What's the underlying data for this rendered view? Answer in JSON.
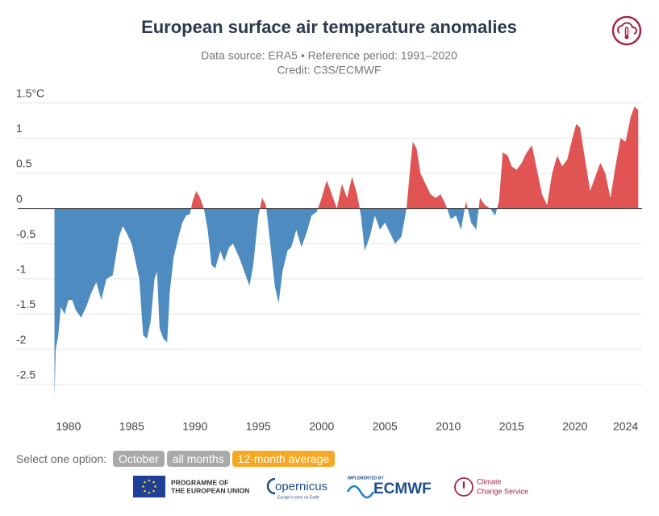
{
  "chart_data": {
    "type": "area",
    "title": "European surface air temperature anomalies",
    "subtitle": "Data source: ERA5 • Reference period: 1991–2020",
    "credit": "Credit: C3S/ECMWF",
    "x": [
      1978.9,
      1979.0,
      1979.2,
      1979.4,
      1979.7,
      1980.0,
      1980.3,
      1980.6,
      1981.0,
      1981.4,
      1981.8,
      1982.2,
      1982.6,
      1983.0,
      1983.5,
      1984.0,
      1984.3,
      1984.6,
      1985.0,
      1985.3,
      1985.6,
      1985.9,
      1986.2,
      1986.5,
      1986.8,
      1987.0,
      1987.2,
      1987.5,
      1987.8,
      1988.0,
      1988.3,
      1988.7,
      1989.0,
      1989.3,
      1989.6,
      1989.8,
      1990.1,
      1990.4,
      1990.7,
      1991.0,
      1991.3,
      1991.6,
      1992.0,
      1992.3,
      1992.7,
      1993.0,
      1993.5,
      1994.0,
      1994.3,
      1994.6,
      1995.0,
      1995.3,
      1995.6,
      1996.0,
      1996.3,
      1996.6,
      1996.9,
      1997.3,
      1997.6,
      1998.0,
      1998.4,
      1998.8,
      1999.2,
      1999.6,
      2000.0,
      2000.4,
      2000.8,
      2001.2,
      2001.6,
      2002.0,
      2002.4,
      2002.8,
      2003.1,
      2003.4,
      2003.8,
      2004.2,
      2004.6,
      2005.0,
      2005.4,
      2005.8,
      2006.3,
      2006.7,
      2007.0,
      2007.2,
      2007.5,
      2007.8,
      2008.2,
      2008.6,
      2009.0,
      2009.4,
      2009.8,
      2010.2,
      2010.6,
      2011.0,
      2011.4,
      2011.8,
      2012.2,
      2012.5,
      2012.9,
      2013.3,
      2013.7,
      2014.0,
      2014.3,
      2014.7,
      2015.0,
      2015.4,
      2015.8,
      2016.2,
      2016.6,
      2017.0,
      2017.4,
      2017.8,
      2018.2,
      2018.6,
      2019.0,
      2019.4,
      2019.8,
      2020.1,
      2020.4,
      2020.8,
      2021.2,
      2021.6,
      2022.0,
      2022.4,
      2022.8,
      2023.2,
      2023.6,
      2024.0,
      2024.4,
      2024.7,
      2025.0
    ],
    "series": [
      {
        "name": "12-month average",
        "values": [
          -2.7,
          -2.0,
          -1.8,
          -1.4,
          -1.5,
          -1.3,
          -1.3,
          -1.45,
          -1.55,
          -1.4,
          -1.2,
          -1.05,
          -1.3,
          -1.0,
          -0.95,
          -0.4,
          -0.25,
          -0.35,
          -0.5,
          -0.75,
          -1.0,
          -1.8,
          -1.85,
          -1.6,
          -1.0,
          -0.9,
          -1.7,
          -1.85,
          -1.9,
          -1.2,
          -0.7,
          -0.4,
          -0.2,
          -0.1,
          -0.08,
          0.1,
          0.25,
          0.15,
          0.0,
          -0.3,
          -0.8,
          -0.85,
          -0.6,
          -0.75,
          -0.55,
          -0.5,
          -0.7,
          -0.95,
          -1.1,
          -0.8,
          -0.1,
          0.15,
          0.05,
          -0.6,
          -1.1,
          -1.35,
          -0.9,
          -0.6,
          -0.55,
          -0.3,
          -0.55,
          -0.35,
          -0.1,
          -0.05,
          0.15,
          0.4,
          0.2,
          0.0,
          0.35,
          0.15,
          0.45,
          0.2,
          -0.1,
          -0.6,
          -0.4,
          -0.1,
          -0.3,
          -0.2,
          -0.35,
          -0.5,
          -0.4,
          0.0,
          0.6,
          0.95,
          0.85,
          0.5,
          0.35,
          0.2,
          0.15,
          0.2,
          0.05,
          -0.15,
          -0.1,
          -0.3,
          0.1,
          -0.2,
          -0.3,
          0.15,
          0.05,
          0.0,
          -0.1,
          0.1,
          0.8,
          0.75,
          0.6,
          0.55,
          0.65,
          0.8,
          0.9,
          0.55,
          0.2,
          0.05,
          0.5,
          0.75,
          0.6,
          0.7,
          1.0,
          1.2,
          1.15,
          0.7,
          0.25,
          0.45,
          0.65,
          0.5,
          0.15,
          0.6,
          1.0,
          0.95,
          1.3,
          1.45,
          1.4
        ]
      }
    ],
    "positive_color": "#e05454",
    "negative_color": "#4d8bc0",
    "xlim": [
      1976,
      2025.3
    ],
    "xticks": [
      1980,
      1985,
      1990,
      1995,
      2000,
      2005,
      2010,
      2015,
      2020,
      2024
    ],
    "ylim": [
      -2.8,
      1.6
    ],
    "yticks": [
      {
        "value": 1.5,
        "label": "1.5°C"
      },
      1,
      0.5,
      0,
      -0.5,
      -1,
      -1.5,
      -2,
      -2.5
    ],
    "grid": true
  },
  "controls": {
    "prompt": "Select one option:",
    "options": [
      "October",
      "all months",
      "12-month average"
    ],
    "selected": 2
  },
  "footer": {
    "eu": [
      "PROGRAMME OF",
      "THE EUROPEAN UNION"
    ],
    "copernicus": "opernicus",
    "copernicus_tagline": "Europe's eyes on Earth",
    "ecmwf_note": "IMPLEMENTED BY",
    "ecmwf": "ECMWF",
    "c3s": [
      "Climate",
      "Change Service"
    ]
  }
}
